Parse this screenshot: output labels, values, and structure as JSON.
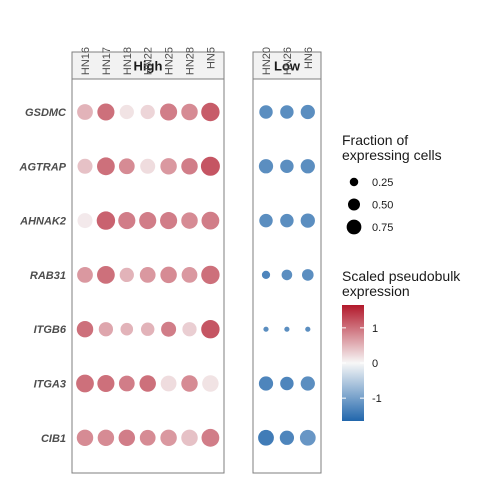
{
  "chart_data": {
    "type": "dotplot",
    "genes": [
      "GSDMC",
      "AGTRAP",
      "AHNAK2",
      "RAB31",
      "ITGB6",
      "ITGA3",
      "CIB1"
    ],
    "groups": [
      {
        "label": "High",
        "samples": [
          "HN16",
          "HN17",
          "HN18",
          "HN22",
          "HN25",
          "HN28",
          "HN5"
        ],
        "fraction": [
          [
            0.55,
            0.65,
            0.45,
            0.45,
            0.65,
            0.6,
            0.75
          ],
          [
            0.5,
            0.7,
            0.55,
            0.5,
            0.6,
            0.6,
            0.8
          ],
          [
            0.5,
            0.75,
            0.65,
            0.65,
            0.65,
            0.6,
            0.7
          ],
          [
            0.55,
            0.7,
            0.45,
            0.55,
            0.6,
            0.55,
            0.75
          ],
          [
            0.6,
            0.45,
            0.35,
            0.4,
            0.5,
            0.45,
            0.75
          ],
          [
            0.7,
            0.65,
            0.55,
            0.6,
            0.55,
            0.6,
            0.6
          ],
          [
            0.6,
            0.6,
            0.6,
            0.55,
            0.6,
            0.6,
            0.7
          ]
        ],
        "expression": [
          [
            0.5,
            1.0,
            0.15,
            0.25,
            0.9,
            0.8,
            1.15
          ],
          [
            0.4,
            1.0,
            0.8,
            0.2,
            0.7,
            0.9,
            1.2
          ],
          [
            0.1,
            1.1,
            0.9,
            0.9,
            0.9,
            0.8,
            0.9
          ],
          [
            0.7,
            1.0,
            0.5,
            0.7,
            0.8,
            0.7,
            1.0
          ],
          [
            1.0,
            0.6,
            0.5,
            0.5,
            0.9,
            0.3,
            1.2
          ],
          [
            1.0,
            1.0,
            0.9,
            1.0,
            0.2,
            0.8,
            0.15
          ],
          [
            0.8,
            0.8,
            0.9,
            0.8,
            0.7,
            0.4,
            0.9
          ]
        ]
      },
      {
        "label": "Low",
        "samples": [
          "HN20",
          "HN26",
          "HN6"
        ],
        "fraction": [
          [
            0.4,
            0.4,
            0.45
          ],
          [
            0.45,
            0.4,
            0.45
          ],
          [
            0.4,
            0.4,
            0.45
          ],
          [
            0.15,
            0.25,
            0.3
          ],
          [
            0.06,
            0.06,
            0.06
          ],
          [
            0.45,
            0.4,
            0.45
          ],
          [
            0.55,
            0.45,
            0.55
          ]
        ],
        "expression": [
          [
            -1.2,
            -1.2,
            -1.2
          ],
          [
            -1.2,
            -1.2,
            -1.2
          ],
          [
            -1.2,
            -1.2,
            -1.2
          ],
          [
            -1.3,
            -1.2,
            -1.2
          ],
          [
            -1.2,
            -1.2,
            -1.2
          ],
          [
            -1.3,
            -1.3,
            -1.2
          ],
          [
            -1.4,
            -1.3,
            -1.1
          ]
        ]
      }
    ],
    "size_legend": {
      "title": [
        "Fraction of",
        "expressing cells"
      ],
      "values": [
        0.25,
        0.5,
        0.75
      ],
      "labels": [
        "0.25",
        "0.50",
        "0.75"
      ]
    },
    "color_legend": {
      "title": [
        "Scaled pseudobulk",
        "expression"
      ],
      "range": [
        -1.65,
        1.65
      ],
      "breaks": [
        1,
        0,
        -1
      ],
      "labels": [
        "1",
        "0",
        "-1"
      ],
      "low_color": "#2166ac",
      "mid_color": "#f7f7f7",
      "high_color": "#b2182b"
    }
  }
}
